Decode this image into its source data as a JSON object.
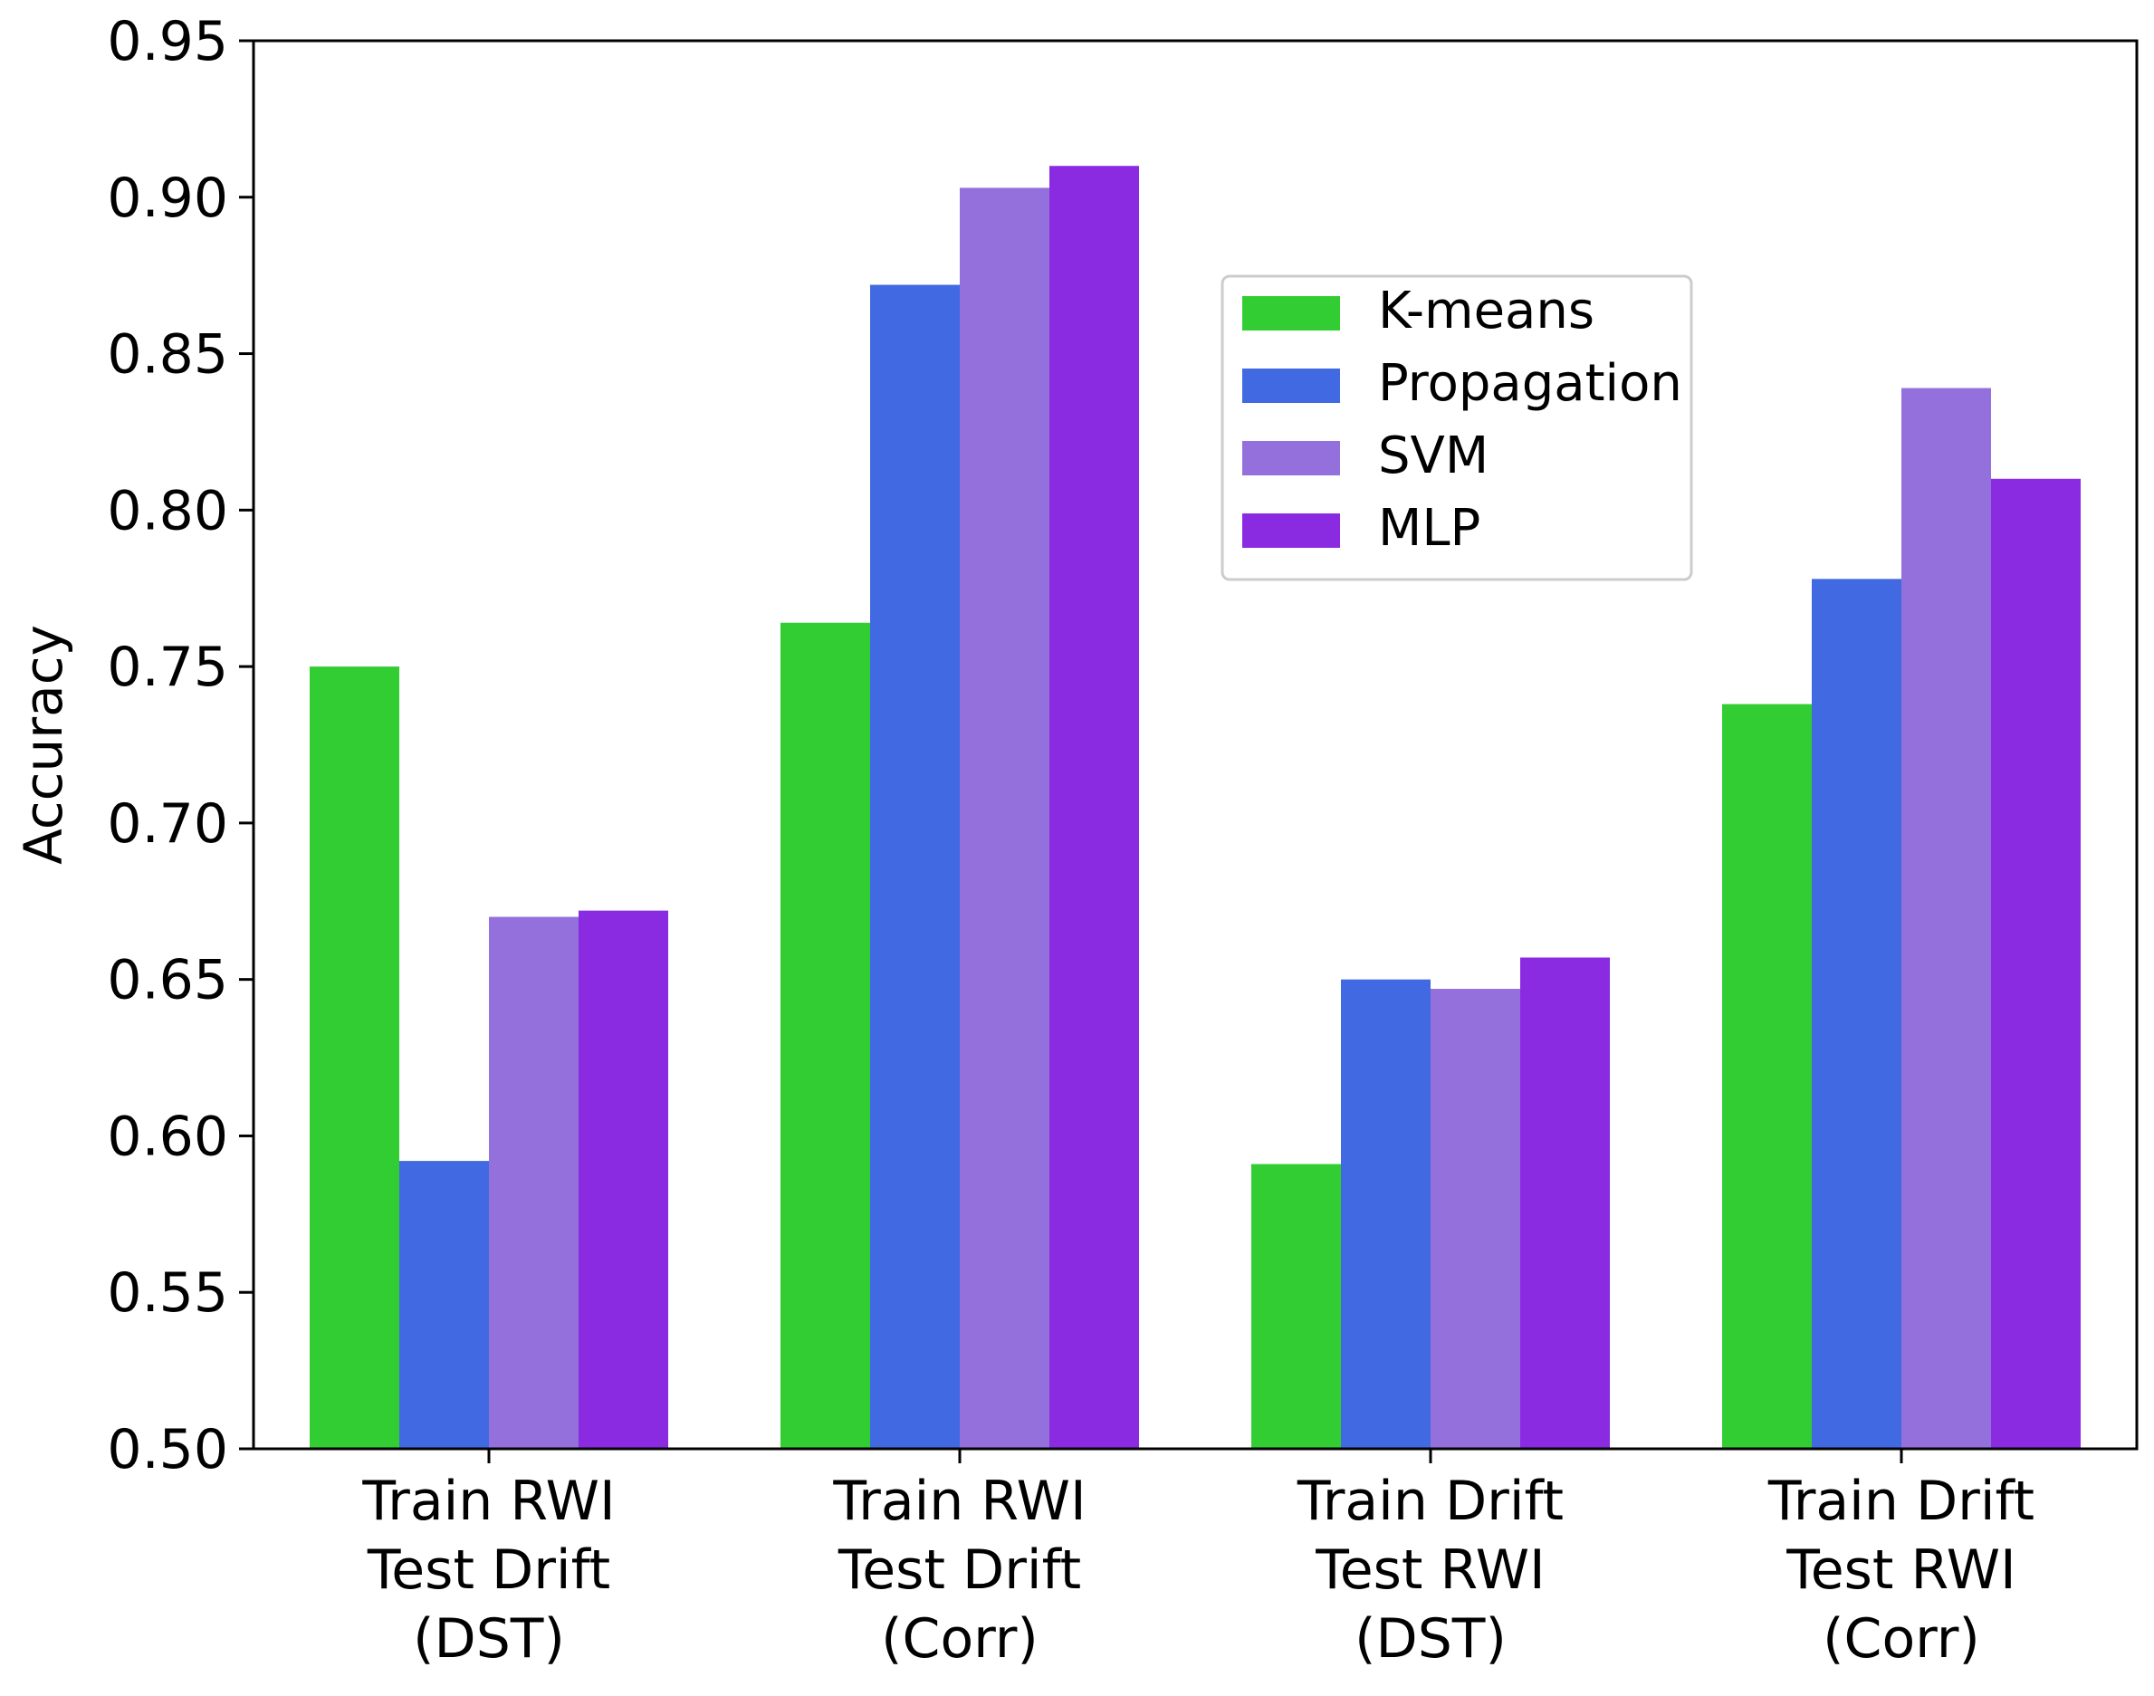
{
  "chart_data": {
    "type": "bar",
    "title": "",
    "xlabel": "",
    "ylabel": "Accuracy",
    "ylim": [
      0.5,
      0.95
    ],
    "yticks": [
      "0.50",
      "0.55",
      "0.60",
      "0.65",
      "0.70",
      "0.75",
      "0.80",
      "0.85",
      "0.90",
      "0.95"
    ],
    "grid": false,
    "legend_position": "upper-center-right",
    "categories": [
      [
        "Train RWI",
        "Test Drift",
        "(DST)"
      ],
      [
        "Train RWI",
        "Test Drift",
        "(Corr)"
      ],
      [
        "Train Drift",
        "Test RWI",
        "(DST)"
      ],
      [
        "Train Drift",
        "Test RWI",
        "(Corr)"
      ]
    ],
    "series": [
      {
        "name": "K-means",
        "color": "#32cd32",
        "values": [
          0.75,
          0.764,
          0.591,
          0.738
        ]
      },
      {
        "name": "Propagation",
        "color": "#4169e1",
        "values": [
          0.592,
          0.872,
          0.65,
          0.778
        ]
      },
      {
        "name": "SVM",
        "color": "#9370db",
        "values": [
          0.67,
          0.903,
          0.647,
          0.839
        ]
      },
      {
        "name": "MLP",
        "color": "#8a2be2",
        "values": [
          0.672,
          0.91,
          0.657,
          0.81
        ]
      }
    ]
  }
}
